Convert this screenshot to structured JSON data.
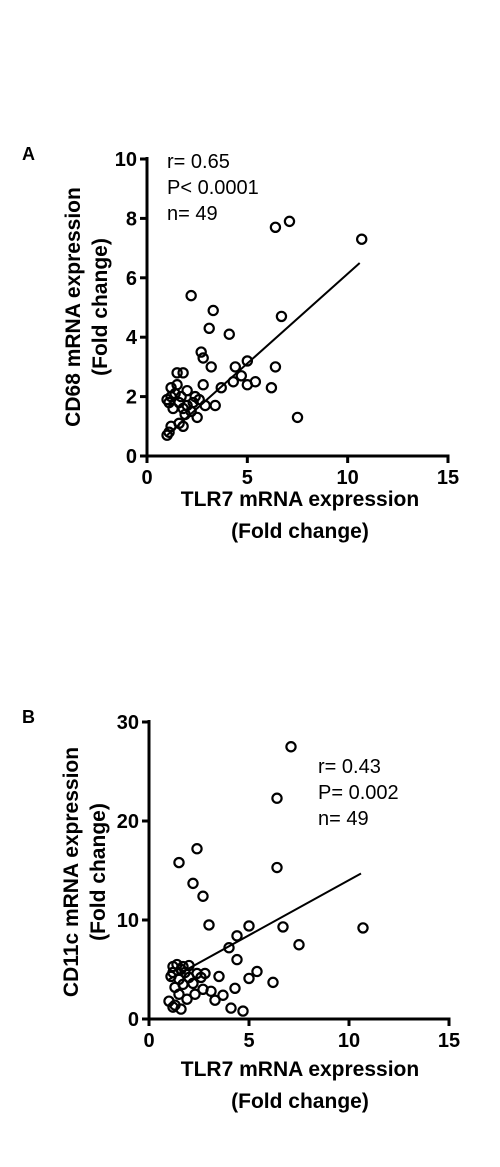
{
  "chart_data": [
    {
      "type": "scatter",
      "panel_label": "A",
      "xlabel_lines": [
        "TLR7 mRNA expression",
        "(Fold change)"
      ],
      "ylabel_lines": [
        "CD68 mRNA expression",
        "(Fold change)"
      ],
      "xlim": [
        0,
        15
      ],
      "ylim": [
        0,
        10
      ],
      "xticks": [
        0,
        5,
        10,
        15
      ],
      "yticks": [
        0,
        2,
        4,
        6,
        8,
        10
      ],
      "stats": [
        "r= 0.65",
        "P< 0.0001",
        "n= 49"
      ],
      "fit_line": {
        "x": [
          1.0,
          10.6
        ],
        "y": [
          0.7,
          6.5
        ]
      },
      "points": [
        {
          "x": 1.0,
          "y": 0.7
        },
        {
          "x": 1.1,
          "y": 0.8
        },
        {
          "x": 1.2,
          "y": 1.0
        },
        {
          "x": 1.1,
          "y": 1.8
        },
        {
          "x": 1.0,
          "y": 1.9
        },
        {
          "x": 1.2,
          "y": 2.0
        },
        {
          "x": 1.2,
          "y": 2.3
        },
        {
          "x": 1.3,
          "y": 1.6
        },
        {
          "x": 1.4,
          "y": 2.1
        },
        {
          "x": 1.5,
          "y": 2.4
        },
        {
          "x": 1.5,
          "y": 2.8
        },
        {
          "x": 1.6,
          "y": 1.1
        },
        {
          "x": 1.6,
          "y": 1.8
        },
        {
          "x": 1.7,
          "y": 2.0
        },
        {
          "x": 1.8,
          "y": 2.8
        },
        {
          "x": 1.8,
          "y": 1.6
        },
        {
          "x": 1.9,
          "y": 1.4
        },
        {
          "x": 1.8,
          "y": 1.0
        },
        {
          "x": 2.0,
          "y": 2.2
        },
        {
          "x": 2.0,
          "y": 1.7
        },
        {
          "x": 2.2,
          "y": 1.5
        },
        {
          "x": 2.3,
          "y": 1.8
        },
        {
          "x": 2.4,
          "y": 2.0
        },
        {
          "x": 2.5,
          "y": 1.3
        },
        {
          "x": 2.6,
          "y": 1.9
        },
        {
          "x": 2.2,
          "y": 5.4
        },
        {
          "x": 2.7,
          "y": 3.5
        },
        {
          "x": 2.8,
          "y": 3.3
        },
        {
          "x": 2.8,
          "y": 2.4
        },
        {
          "x": 2.9,
          "y": 1.7
        },
        {
          "x": 3.1,
          "y": 4.3
        },
        {
          "x": 3.2,
          "y": 3.0
        },
        {
          "x": 3.3,
          "y": 4.9
        },
        {
          "x": 3.4,
          "y": 1.7
        },
        {
          "x": 3.7,
          "y": 2.3
        },
        {
          "x": 4.1,
          "y": 4.1
        },
        {
          "x": 4.3,
          "y": 2.5
        },
        {
          "x": 4.4,
          "y": 3.0
        },
        {
          "x": 4.7,
          "y": 2.7
        },
        {
          "x": 5.0,
          "y": 3.2
        },
        {
          "x": 5.0,
          "y": 2.4
        },
        {
          "x": 5.4,
          "y": 2.5
        },
        {
          "x": 6.2,
          "y": 2.3
        },
        {
          "x": 6.4,
          "y": 3.0
        },
        {
          "x": 6.4,
          "y": 7.7
        },
        {
          "x": 6.7,
          "y": 4.7
        },
        {
          "x": 7.1,
          "y": 7.9
        },
        {
          "x": 7.5,
          "y": 1.3
        },
        {
          "x": 10.7,
          "y": 7.3
        }
      ]
    },
    {
      "type": "scatter",
      "panel_label": "B",
      "xlabel_lines": [
        "TLR7 mRNA expression",
        "(Fold change)"
      ],
      "ylabel_lines": [
        "CD11c mRNA expression",
        "(Fold change)"
      ],
      "xlim": [
        0,
        15
      ],
      "ylim": [
        0,
        30
      ],
      "xticks": [
        0,
        5,
        10,
        15
      ],
      "yticks": [
        0,
        10,
        20,
        30
      ],
      "stats": [
        "r= 0.43",
        "P= 0.002",
        "n= 49"
      ],
      "fit_line": {
        "x": [
          1.0,
          10.6
        ],
        "y": [
          4.0,
          14.7
        ]
      },
      "points": [
        {
          "x": 1.0,
          "y": 1.8
        },
        {
          "x": 1.1,
          "y": 4.3
        },
        {
          "x": 1.2,
          "y": 5.3
        },
        {
          "x": 1.2,
          "y": 4.7
        },
        {
          "x": 1.3,
          "y": 1.4
        },
        {
          "x": 1.3,
          "y": 3.2
        },
        {
          "x": 1.4,
          "y": 5.5
        },
        {
          "x": 1.5,
          "y": 2.5
        },
        {
          "x": 1.5,
          "y": 4.0
        },
        {
          "x": 1.5,
          "y": 15.8
        },
        {
          "x": 1.6,
          "y": 1.0
        },
        {
          "x": 1.7,
          "y": 5.3
        },
        {
          "x": 1.7,
          "y": 3.5
        },
        {
          "x": 1.8,
          "y": 4.7
        },
        {
          "x": 1.9,
          "y": 2.0
        },
        {
          "x": 2.0,
          "y": 4.2
        },
        {
          "x": 2.0,
          "y": 5.4
        },
        {
          "x": 2.2,
          "y": 13.7
        },
        {
          "x": 2.3,
          "y": 2.5
        },
        {
          "x": 2.4,
          "y": 17.2
        },
        {
          "x": 2.4,
          "y": 4.6
        },
        {
          "x": 2.6,
          "y": 4.2
        },
        {
          "x": 2.7,
          "y": 3.0
        },
        {
          "x": 2.7,
          "y": 12.4
        },
        {
          "x": 2.8,
          "y": 4.6
        },
        {
          "x": 3.0,
          "y": 9.5
        },
        {
          "x": 3.1,
          "y": 2.8
        },
        {
          "x": 3.3,
          "y": 1.9
        },
        {
          "x": 3.5,
          "y": 4.3
        },
        {
          "x": 3.7,
          "y": 2.4
        },
        {
          "x": 4.0,
          "y": 7.2
        },
        {
          "x": 4.1,
          "y": 1.1
        },
        {
          "x": 4.3,
          "y": 3.1
        },
        {
          "x": 4.4,
          "y": 8.4
        },
        {
          "x": 4.4,
          "y": 6.0
        },
        {
          "x": 4.7,
          "y": 0.8
        },
        {
          "x": 5.0,
          "y": 9.4
        },
        {
          "x": 5.0,
          "y": 4.1
        },
        {
          "x": 5.4,
          "y": 4.8
        },
        {
          "x": 6.2,
          "y": 3.7
        },
        {
          "x": 6.4,
          "y": 15.3
        },
        {
          "x": 6.4,
          "y": 22.3
        },
        {
          "x": 6.7,
          "y": 9.3
        },
        {
          "x": 7.1,
          "y": 27.5
        },
        {
          "x": 7.5,
          "y": 7.5
        },
        {
          "x": 10.7,
          "y": 9.2
        },
        {
          "x": 1.2,
          "y": 1.2
        },
        {
          "x": 1.6,
          "y": 5.0
        },
        {
          "x": 2.2,
          "y": 3.6
        }
      ]
    }
  ]
}
